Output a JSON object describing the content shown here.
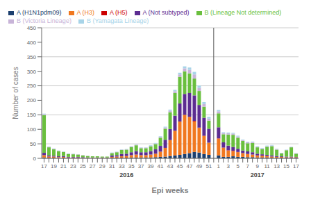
{
  "chart_data": {
    "type": "bar",
    "stacked": true,
    "xlabel": "Epi weeks",
    "ylabel": "Number of cases",
    "categories": [
      "17",
      null,
      "19",
      null,
      "21",
      null,
      "23",
      null,
      "25",
      null,
      "27",
      null,
      "29",
      null,
      "31",
      null,
      "33",
      null,
      "35",
      null,
      "37",
      null,
      "39",
      null,
      "41",
      null,
      "43",
      null,
      "45",
      null,
      "47",
      null,
      "49",
      null,
      "51",
      null,
      "1",
      null,
      "3",
      null,
      "5",
      null,
      "7",
      null,
      "9",
      null,
      "11",
      null,
      "13",
      null,
      "15",
      null,
      "17"
    ],
    "series": [
      {
        "name": "A (H1N1pdm09)",
        "color": "#1c3f6e",
        "values": [
          3,
          2,
          2,
          1,
          2,
          1,
          1,
          1,
          1,
          1,
          1,
          1,
          1,
          1,
          2,
          2,
          2,
          2,
          3,
          3,
          3,
          3,
          3,
          4,
          5,
          6,
          8,
          10,
          12,
          15,
          18,
          22,
          20,
          15,
          12,
          null,
          10,
          5,
          5,
          7,
          5,
          5,
          4,
          4,
          3,
          3,
          3,
          2,
          2,
          2,
          2,
          2,
          2
        ]
      },
      {
        "name": "A (H3)",
        "color": "#f07820",
        "values": [
          8,
          4,
          4,
          3,
          3,
          2,
          2,
          2,
          1,
          1,
          1,
          1,
          1,
          1,
          3,
          4,
          5,
          6,
          8,
          10,
          8,
          8,
          10,
          12,
          18,
          30,
          55,
          85,
          115,
          135,
          125,
          105,
          85,
          62,
          42,
          null,
          58,
          32,
          22,
          18,
          16,
          13,
          11,
          9,
          7,
          6,
          5,
          4,
          3,
          3,
          2,
          2,
          2
        ]
      },
      {
        "name": "A (H5)",
        "color": "#cc0000",
        "values": [
          0,
          0,
          0,
          0,
          0,
          0,
          0,
          0,
          0,
          0,
          0,
          0,
          0,
          0,
          0,
          0,
          0,
          0,
          0,
          0,
          0,
          0,
          0,
          0,
          0,
          0,
          0,
          0,
          0,
          0,
          0,
          2,
          1,
          1,
          0,
          null,
          1,
          0,
          1,
          1,
          1,
          0,
          0,
          0,
          0,
          0,
          0,
          0,
          0,
          0,
          0,
          0,
          0
        ]
      },
      {
        "name": "A (Not subtyped)",
        "color": "#5c2d91",
        "values": [
          8,
          4,
          3,
          3,
          3,
          2,
          2,
          2,
          2,
          1,
          1,
          1,
          1,
          1,
          5,
          5,
          8,
          8,
          10,
          12,
          10,
          10,
          12,
          15,
          20,
          28,
          38,
          52,
          62,
          72,
          82,
          88,
          78,
          62,
          48,
          null,
          38,
          18,
          16,
          13,
          11,
          9,
          9,
          8,
          6,
          5,
          4,
          4,
          3,
          2,
          2,
          2,
          1
        ]
      },
      {
        "name": "B (Lineage Not determined)",
        "color": "#6abf3e",
        "values": [
          130,
          28,
          22,
          18,
          14,
          10,
          9,
          8,
          6,
          5,
          4,
          4,
          3,
          3,
          8,
          10,
          14,
          14,
          18,
          20,
          14,
          14,
          16,
          18,
          28,
          38,
          58,
          78,
          92,
          78,
          68,
          58,
          48,
          38,
          28,
          null,
          48,
          28,
          38,
          42,
          38,
          33,
          28,
          32,
          22,
          18,
          28,
          32,
          22,
          10,
          22,
          32,
          11
        ]
      },
      {
        "name": "B (Victoria Lineage)",
        "color": "#c8b4d8",
        "values": [
          3,
          2,
          2,
          1,
          1,
          1,
          1,
          1,
          1,
          1,
          0,
          0,
          0,
          0,
          1,
          1,
          1,
          1,
          2,
          2,
          2,
          2,
          2,
          2,
          3,
          4,
          5,
          6,
          8,
          10,
          12,
          14,
          11,
          9,
          7,
          null,
          7,
          4,
          4,
          4,
          4,
          3,
          3,
          3,
          2,
          2,
          2,
          2,
          2,
          1,
          1,
          1,
          1
        ]
      },
      {
        "name": "B (Yamagata Lineage)",
        "color": "#a8d4e8",
        "values": [
          2,
          1,
          1,
          1,
          1,
          1,
          1,
          0,
          0,
          0,
          0,
          0,
          0,
          0,
          1,
          1,
          1,
          1,
          1,
          1,
          1,
          1,
          2,
          2,
          2,
          3,
          4,
          5,
          6,
          7,
          8,
          9,
          8,
          7,
          6,
          null,
          5,
          3,
          3,
          3,
          3,
          2,
          2,
          2,
          2,
          2,
          2,
          2,
          1,
          1,
          1,
          1,
          1
        ]
      }
    ],
    "ylim": [
      0,
      450
    ],
    "yticks": [
      0,
      50,
      100,
      150,
      200,
      250,
      300,
      350,
      400,
      450
    ],
    "grid": true,
    "legend": "upper left",
    "annotations": [
      {
        "text": "2016"
      },
      {
        "text": "2017"
      }
    ]
  }
}
